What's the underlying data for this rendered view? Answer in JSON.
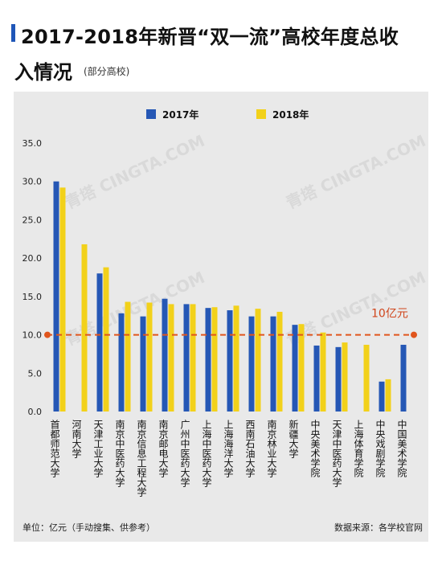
{
  "title_line1": "2017-2018年新晋“双一流”高校年度总收",
  "title_line2": "入情况",
  "subtitle": "(部分高校)",
  "footer_unit": "单位：亿元（手动搜集、供参考）",
  "footer_source": "数据来源：各学校官网",
  "colors": {
    "s2017": "#2557b5",
    "s2018": "#f2d11a",
    "ref": "#e0551d",
    "accent": "#1f56b8"
  },
  "chart_data": {
    "type": "bar",
    "categories": [
      "首都师范大学",
      "河南大学",
      "天津工业大学",
      "南京中医药大学",
      "南京信息工程大学",
      "南京邮电大学",
      "广州中医药大学",
      "上海中医药大学",
      "上海海洋大学",
      "西南石油大学",
      "南京林业大学",
      "新疆大学",
      "中央美术学院",
      "天津中医药大学",
      "上海体育学院",
      "中央戏剧学院",
      "中国美术学院"
    ],
    "series": [
      {
        "name": "2017年",
        "values": [
          30.0,
          null,
          18.0,
          12.8,
          12.4,
          14.7,
          14.0,
          13.5,
          13.2,
          12.4,
          12.4,
          11.3,
          8.6,
          8.4,
          null,
          3.9,
          8.7
        ]
      },
      {
        "name": "2018年",
        "values": [
          29.2,
          21.8,
          18.8,
          14.3,
          14.2,
          14.0,
          14.0,
          13.6,
          13.8,
          13.4,
          13.0,
          11.4,
          10.3,
          9.0,
          8.7,
          4.2,
          null
        ]
      }
    ],
    "reference_line": {
      "value": 10,
      "label": "10亿元"
    },
    "y_ticks": [
      "0.0",
      "5.0",
      "10.0",
      "15.0",
      "20.0",
      "25.0",
      "30.0",
      "35.0"
    ],
    "ylim": [
      0,
      35
    ],
    "grid": false,
    "legend_position": "top-center"
  }
}
